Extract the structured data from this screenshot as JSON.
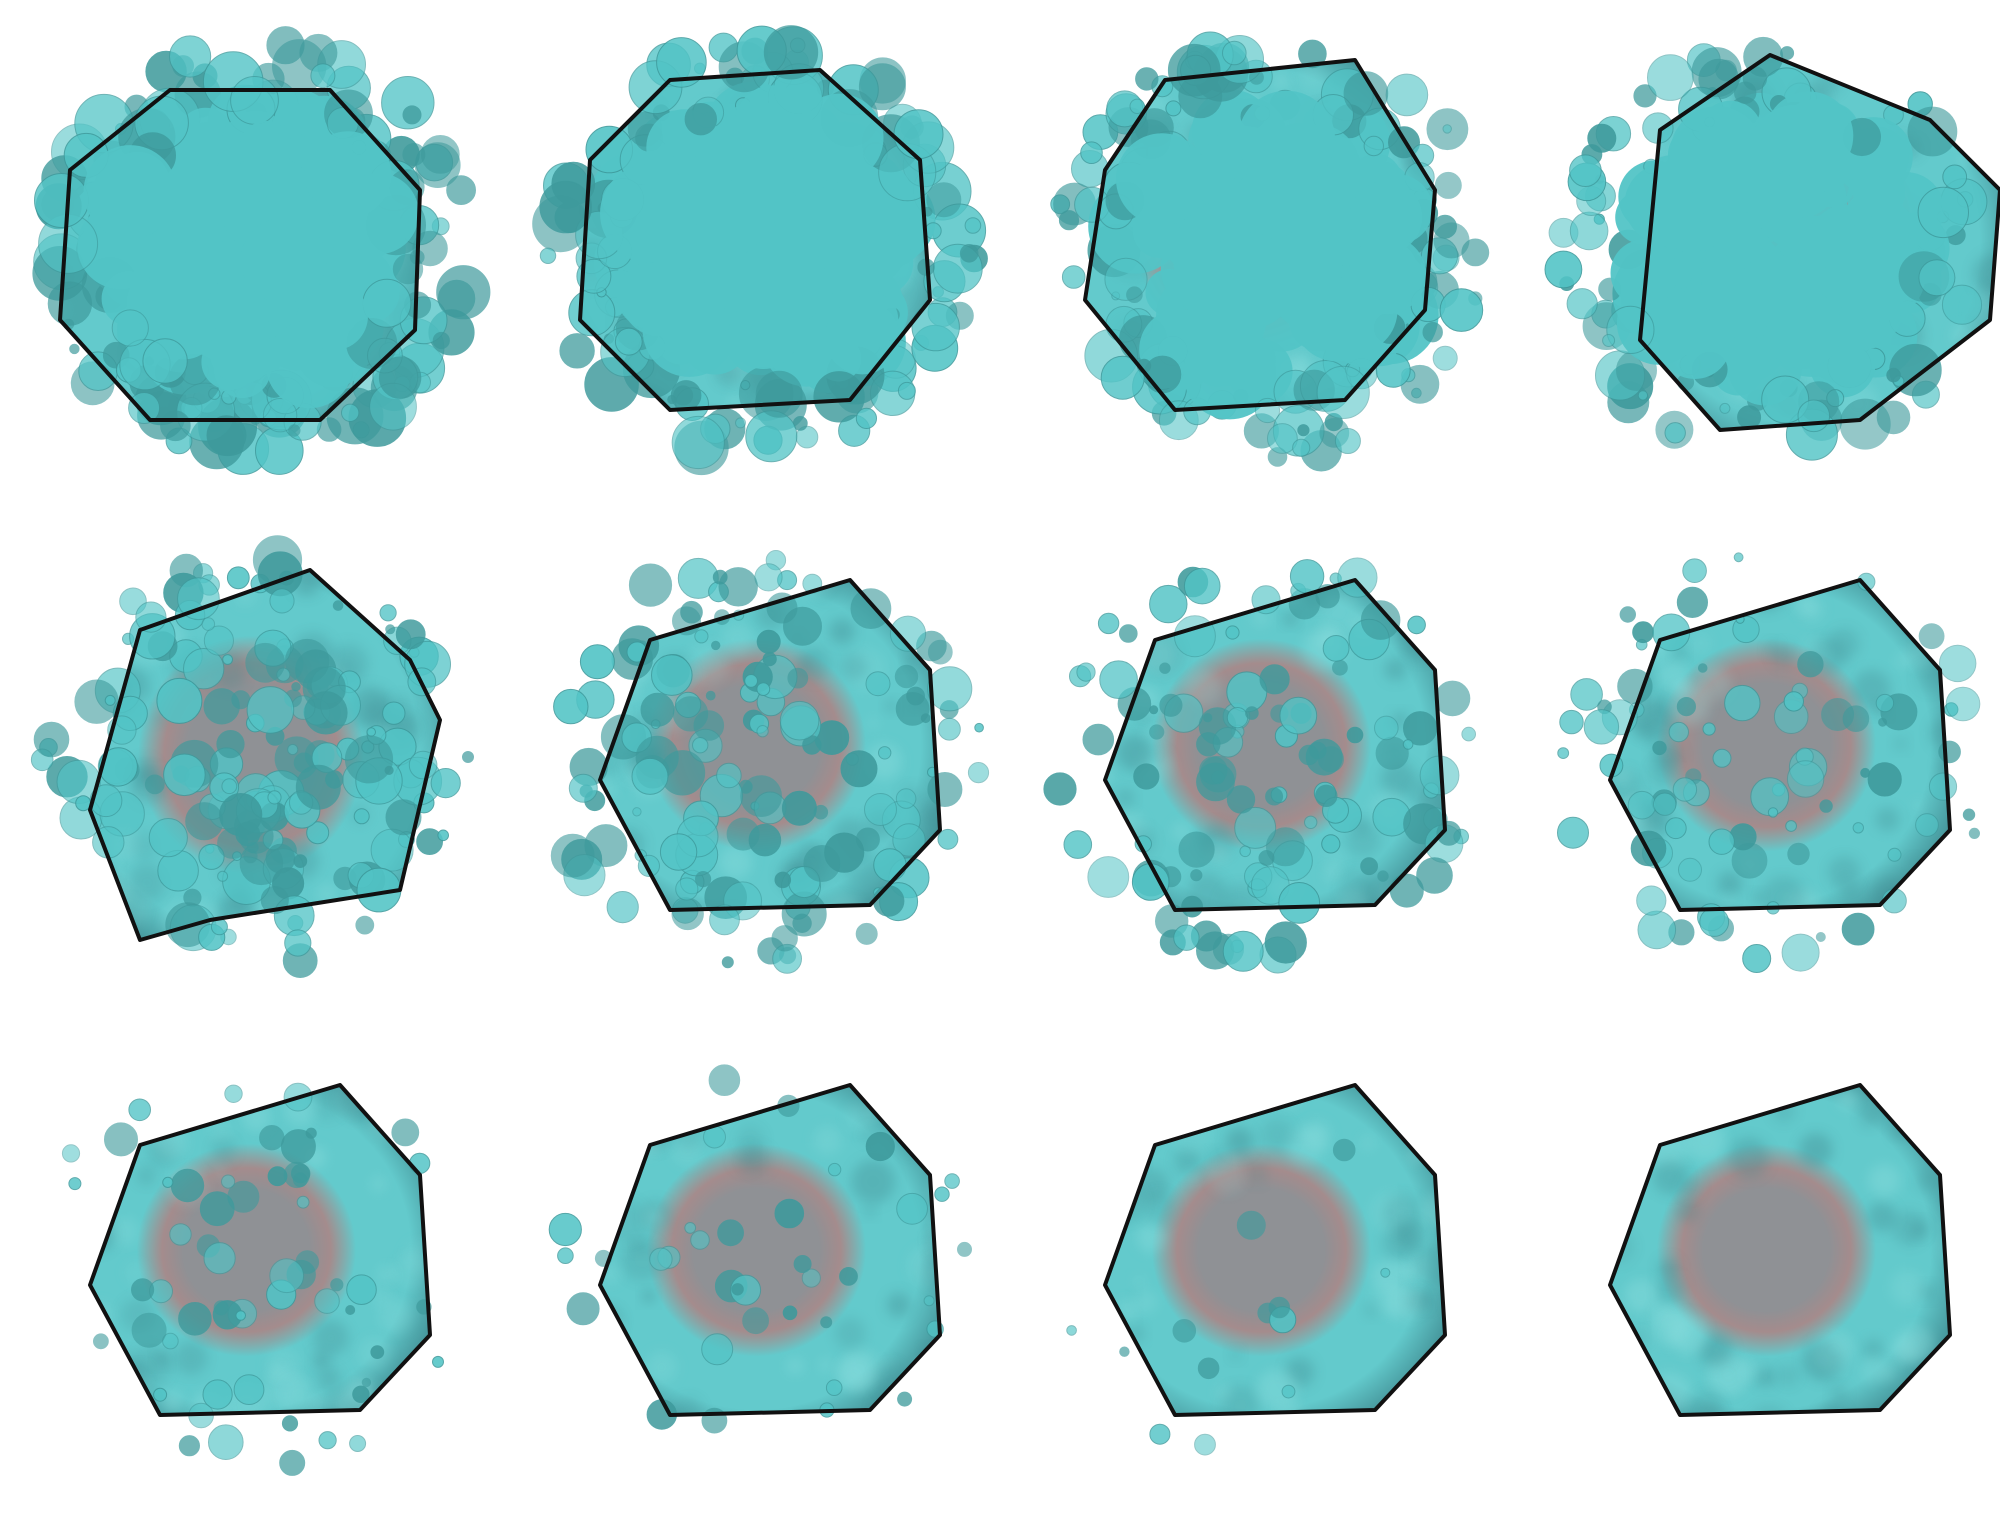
{
  "figure": {
    "rows": 3,
    "columns": 4,
    "colors": {
      "background": "#ffffff",
      "bubble": "#52c4c6",
      "bubble_dark": "#3e9a9c",
      "hexagon_fill": "#63cacc",
      "hexagon_edge_shade": "#3f8a90",
      "hexagon_stroke": "#111111",
      "core": "#8f9195",
      "core_tint": "#9a7f80"
    },
    "frames": [
      {
        "step": 1,
        "bubble_amount": 1.0
      },
      {
        "step": 2,
        "bubble_amount": 0.93
      },
      {
        "step": 3,
        "bubble_amount": 0.84
      },
      {
        "step": 4,
        "bubble_amount": 0.74
      },
      {
        "step": 5,
        "bubble_amount": 0.63
      },
      {
        "step": 6,
        "bubble_amount": 0.52
      },
      {
        "step": 7,
        "bubble_amount": 0.42
      },
      {
        "step": 8,
        "bubble_amount": 0.32
      },
      {
        "step": 9,
        "bubble_amount": 0.22
      },
      {
        "step": 10,
        "bubble_amount": 0.14
      },
      {
        "step": 11,
        "bubble_amount": 0.05
      },
      {
        "step": 12,
        "bubble_amount": 0.0
      }
    ]
  }
}
